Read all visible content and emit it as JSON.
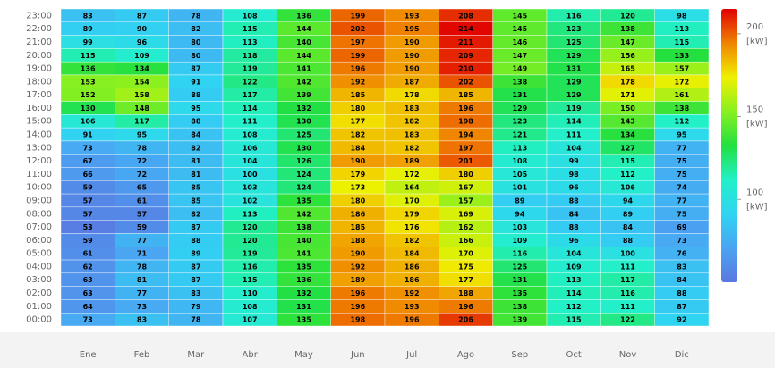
{
  "chart_data": {
    "type": "heatmap",
    "x_categories": [
      "Ene",
      "Feb",
      "Mar",
      "Abr",
      "May",
      "Jun",
      "Jul",
      "Ago",
      "Sep",
      "Oct",
      "Nov",
      "Dic"
    ],
    "y_categories": [
      "23:00",
      "22:00",
      "21:00",
      "20:00",
      "19:00",
      "18:00",
      "17:00",
      "16:00",
      "15:00",
      "14:00",
      "13:00",
      "12:00",
      "11:00",
      "10:00",
      "09:00",
      "08:00",
      "07:00",
      "06:00",
      "05:00",
      "04:00",
      "03:00",
      "02:00",
      "01:00",
      "00:00"
    ],
    "values": [
      [
        83,
        87,
        78,
        108,
        136,
        199,
        193,
        208,
        145,
        116,
        120,
        98
      ],
      [
        89,
        90,
        82,
        115,
        144,
        202,
        195,
        214,
        145,
        123,
        138,
        113
      ],
      [
        99,
        96,
        80,
        113,
        140,
        197,
        190,
        211,
        146,
        125,
        147,
        115
      ],
      [
        115,
        109,
        80,
        118,
        144,
        199,
        190,
        209,
        147,
        129,
        156,
        133
      ],
      [
        136,
        134,
        87,
        119,
        141,
        196,
        190,
        210,
        149,
        131,
        165,
        157
      ],
      [
        153,
        154,
        91,
        122,
        142,
        192,
        187,
        202,
        138,
        129,
        178,
        172
      ],
      [
        152,
        158,
        88,
        117,
        139,
        185,
        178,
        185,
        131,
        129,
        171,
        161
      ],
      [
        130,
        148,
        95,
        114,
        132,
        180,
        183,
        196,
        129,
        119,
        150,
        138
      ],
      [
        106,
        117,
        88,
        111,
        130,
        177,
        182,
        198,
        123,
        114,
        143,
        112
      ],
      [
        91,
        95,
        84,
        108,
        125,
        182,
        183,
        194,
        121,
        111,
        134,
        95
      ],
      [
        73,
        78,
        82,
        106,
        130,
        184,
        182,
        197,
        113,
        104,
        127,
        77
      ],
      [
        67,
        72,
        81,
        104,
        126,
        190,
        189,
        201,
        108,
        99,
        115,
        75
      ],
      [
        66,
        72,
        81,
        100,
        124,
        179,
        172,
        180,
        105,
        98,
        112,
        75
      ],
      [
        59,
        65,
        85,
        103,
        124,
        173,
        164,
        167,
        101,
        96,
        106,
        74
      ],
      [
        57,
        61,
        85,
        102,
        135,
        180,
        170,
        157,
        89,
        88,
        94,
        77
      ],
      [
        57,
        57,
        82,
        113,
        142,
        186,
        179,
        169,
        94,
        84,
        89,
        75
      ],
      [
        53,
        59,
        87,
        120,
        138,
        185,
        176,
        162,
        103,
        88,
        84,
        69
      ],
      [
        59,
        77,
        88,
        120,
        140,
        188,
        182,
        166,
        109,
        96,
        88,
        73
      ],
      [
        61,
        71,
        89,
        119,
        141,
        190,
        184,
        170,
        116,
        104,
        100,
        76
      ],
      [
        62,
        78,
        87,
        116,
        135,
        192,
        186,
        175,
        125,
        109,
        111,
        83
      ],
      [
        63,
        81,
        87,
        115,
        136,
        189,
        186,
        177,
        131,
        113,
        117,
        84
      ],
      [
        63,
        77,
        83,
        110,
        132,
        196,
        192,
        188,
        135,
        114,
        116,
        88
      ],
      [
        64,
        73,
        79,
        108,
        131,
        196,
        193,
        196,
        138,
        112,
        111,
        87
      ],
      [
        73,
        83,
        78,
        107,
        135,
        198,
        196,
        206,
        139,
        115,
        122,
        92
      ]
    ],
    "clim": [
      50,
      215
    ],
    "cticks": [
      100,
      150,
      200
    ],
    "unit": "[kW]",
    "colorscale": [
      "#5a78e0",
      "#4aa4f2",
      "#30d4f2",
      "#22f0c8",
      "#22e040",
      "#88f020",
      "#f0f000",
      "#f08400",
      "#e00000"
    ]
  }
}
